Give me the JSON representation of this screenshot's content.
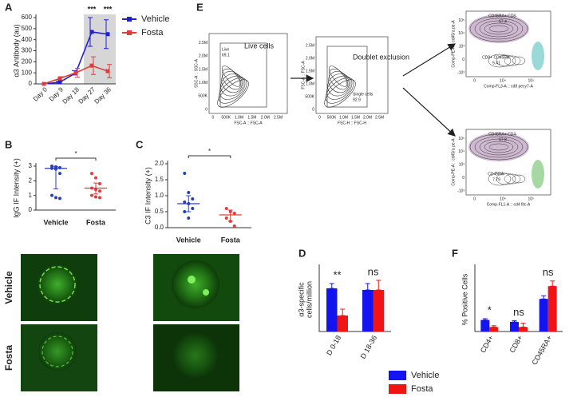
{
  "panel_labels": [
    "A",
    "B",
    "C",
    "D",
    "E",
    "F"
  ],
  "chart_data": [
    {
      "type": "line",
      "ylabel": "α3 Antibody (au)",
      "categories": [
        "Day 0",
        "Day 9",
        "Day 18",
        "Day 27",
        "Day 36"
      ],
      "series": [
        {
          "name": "Vehicle",
          "color": "#1f1fd0",
          "values": [
            0,
            15,
            100,
            470,
            450
          ],
          "errors": [
            0,
            10,
            20,
            130,
            130
          ]
        },
        {
          "name": "Fosta",
          "color": "#e23b3b",
          "values": [
            0,
            50,
            100,
            165,
            115
          ],
          "errors": [
            0,
            15,
            40,
            80,
            60
          ]
        }
      ],
      "ylim": [
        0,
        600
      ],
      "yticks": [
        0,
        100,
        200,
        300,
        400,
        500,
        600
      ],
      "legend": "upper right",
      "annotations": [
        {
          "text": "***",
          "x": "Day 27"
        },
        {
          "text": "***",
          "x": "Day 36"
        }
      ]
    },
    {
      "type": "strip",
      "ylabel": "IgG IF Intensity (+)",
      "categories": [
        "Vehicle",
        "Fosta"
      ],
      "groups": [
        {
          "color": "#2a3fb5",
          "values": [
            3.0,
            2.95,
            2.9,
            2.85,
            2.8,
            2.5,
            1.0,
            0.85,
            0.8
          ],
          "center": 2.85,
          "low": 1.45,
          "high": 2.95
        },
        {
          "color": "#e23b3b",
          "values": [
            2.5,
            2.2,
            1.8,
            1.5,
            1.4,
            1.3,
            1.0,
            0.9,
            0.85
          ],
          "center": 1.5,
          "low": 1.1,
          "high": 1.85
        }
      ],
      "ylim": [
        0,
        3
      ],
      "yticks": [
        0,
        1,
        2,
        3
      ],
      "annotations": [
        {
          "text": "*"
        }
      ]
    },
    {
      "type": "strip",
      "ylabel": "C3 IF Intensity (+)",
      "categories": [
        "Vehicle",
        "Fosta"
      ],
      "groups": [
        {
          "color": "#2a3fb5",
          "values": [
            1.7,
            1.1,
            0.9,
            0.8,
            0.75,
            0.6,
            0.5,
            0.3
          ],
          "center": 0.75,
          "low": 0.5,
          "high": 1.0
        },
        {
          "color": "#e23b3b",
          "values": [
            0.6,
            0.5,
            0.45,
            0.3,
            0.2,
            0.05
          ],
          "center": 0.4,
          "low": 0.2,
          "high": 0.55
        }
      ],
      "ylim": [
        0,
        2
      ],
      "yticks": [
        {
          "value": 0,
          "label": "0.0"
        },
        {
          "value": 0.5,
          "label": "0.5"
        },
        {
          "value": 1,
          "label": "1.0"
        },
        {
          "value": 1.5,
          "label": "1.5"
        },
        {
          "value": 2,
          "label": "2.0"
        }
      ],
      "annotations": [
        {
          "text": "*"
        }
      ]
    },
    {
      "type": "bar",
      "ylabel": [
        "α3-specific",
        "cells/million"
      ],
      "categories": [
        "D 0-18",
        "D 18-36"
      ],
      "series": [
        {
          "name": "Vehicle",
          "color": "#1414f0",
          "values": [
            27,
            26
          ],
          "errors": [
            3,
            4
          ]
        },
        {
          "name": "Fosta",
          "color": "#f01414",
          "values": [
            10,
            26
          ],
          "errors": [
            4,
            6
          ]
        }
      ],
      "ylim": [
        0,
        40
      ],
      "legend": "lower right",
      "annotations": [
        {
          "text": "**",
          "x": "D 0-18"
        },
        {
          "text": "ns",
          "x": "D 18-36"
        }
      ]
    },
    {
      "type": "bar",
      "ylabel": "% Positive Cells",
      "categories": [
        "CD4+",
        "CD8+",
        "CD45RA+"
      ],
      "series": [
        {
          "color": "#1414f0",
          "values": [
            18,
            15,
            51
          ],
          "errors": [
            2,
            2,
            5
          ]
        },
        {
          "color": "#f01414",
          "values": [
            7,
            7,
            71
          ],
          "errors": [
            2,
            6,
            8
          ]
        }
      ],
      "ylim": [
        0,
        100
      ],
      "annotations": [
        {
          "text": "*",
          "x": "CD4+"
        },
        {
          "text": "ns",
          "x": "CD8+"
        },
        {
          "text": "ns",
          "x": "CD45RA+"
        }
      ]
    }
  ],
  "flow": [
    {
      "x_label": "FSC-A :: FSC-A",
      "y_label": "SSC-A :: SSC-A",
      "caption": "Live cells",
      "gates": [
        {
          "name": "Live",
          "value": "69.1"
        }
      ],
      "x_ticks": [
        "0",
        "500K",
        "1.0M",
        "1.5M",
        "2.0M",
        "2.5M"
      ],
      "y_ticks": [
        "0",
        "500K",
        "1.0M",
        "1.5M",
        "2.0M",
        "2.5M"
      ]
    },
    {
      "x_label": "FSC-H :: FSC-H",
      "y_label": "FSC-A :: FSC-A",
      "caption": "Doublet exclusion",
      "gates": [
        {
          "name": "Single cells",
          "value": "92.9"
        }
      ],
      "x_ticks": [
        "0",
        "500K",
        "1.0M",
        "1.5M",
        "2.0M",
        "2.5M"
      ],
      "y_ticks": [
        "0",
        "500K",
        "1.0M",
        "1.5M",
        "2.0M",
        "2.5M"
      ]
    },
    {
      "x_label": "Comp-FL3-A :: cd8 pecy7-A",
      "y_label": "Comp-PE-A :: cd45ra pe-A",
      "gates": [
        {
          "name": "CD45RA+ CD8-",
          "value": "67.4"
        },
        {
          "name": "CD8+ CD45RA-",
          "value": "5.41"
        }
      ],
      "x_ticks": [
        "0",
        "10⁴",
        "10⁵"
      ],
      "y_ticks": [
        "-10³",
        "0",
        "10³",
        "10⁴",
        "10⁵"
      ]
    },
    {
      "x_label": "Comp-FL1-A :: cd4 fitc-A",
      "y_label": "Comp-PE-A :: cd45ra pe-A",
      "gates": [
        {
          "name": "CD45RA+ CD4-",
          "value": "67.8"
        },
        {
          "name": "CD45RA-",
          "value": "7.79"
        }
      ],
      "x_ticks": [
        "0",
        "10⁴",
        "10⁵"
      ],
      "y_ticks": [
        "-10³",
        "0",
        "10³",
        "10⁴",
        "10⁵"
      ]
    }
  ],
  "images": {
    "rows": [
      "Vehicle",
      "Fosta"
    ]
  }
}
